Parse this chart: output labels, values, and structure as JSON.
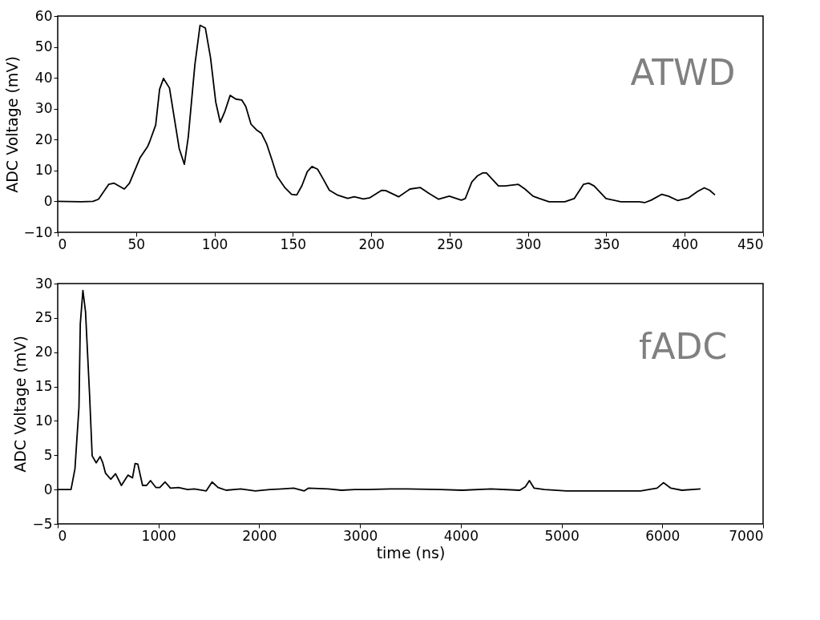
{
  "chart_data": [
    {
      "type": "line",
      "ylabel": "ADC Voltage (mV)",
      "annotations": [
        "ATWD"
      ],
      "xlim": [
        0,
        450
      ],
      "xticks": [
        0,
        50,
        100,
        150,
        200,
        250,
        300,
        350,
        400,
        450
      ],
      "ylim": [
        -10,
        60
      ],
      "yticks": [
        -10,
        0,
        10,
        20,
        30,
        40,
        50,
        60
      ],
      "grid": false,
      "tick_labels": true,
      "series": [
        {
          "color": "#000000",
          "x": [
            0,
            15,
            22.5,
            26,
            32.5,
            36,
            42.5,
            45.8,
            52.5,
            57.5,
            59,
            62.5,
            65,
            67.5,
            71.3,
            77.5,
            80.8,
            83.3,
            87.5,
            90.8,
            94.2,
            97.5,
            100.8,
            103.7,
            106.7,
            110,
            113.7,
            117.5,
            120,
            123.3,
            126.7,
            130,
            133.3,
            136.7,
            140,
            145,
            149.2,
            152.5,
            155.8,
            159.2,
            162.2,
            165.8,
            169.2,
            173.3,
            178.3,
            185,
            189.2,
            195,
            199.2,
            206.7,
            209.2,
            217.5,
            224.7,
            231.2,
            237.1,
            243,
            249.8,
            257.5,
            260,
            264.2,
            267.6,
            271,
            273.5,
            281.2,
            285.4,
            293.9,
            298.1,
            303.2,
            307.4,
            313.4,
            323.5,
            329.5,
            335.4,
            338.8,
            342.2,
            349.8,
            359.2,
            371,
            374.4,
            378.6,
            385.4,
            389.6,
            395.5,
            402.3,
            408.2,
            412.5,
            415.9,
            419.3
          ],
          "values": [
            0,
            -0.1,
            0,
            0.7,
            5.5,
            5.9,
            4.0,
            5.9,
            14.1,
            17.9,
            19.8,
            24.7,
            36.3,
            39.8,
            36.7,
            17.1,
            12.0,
            20.9,
            44.2,
            57.0,
            56.1,
            46.5,
            32.2,
            25.6,
            29.2,
            34.3,
            33.1,
            32.8,
            30.7,
            25.0,
            23.2,
            22.0,
            18.6,
            13.4,
            8.1,
            4.4,
            2.3,
            2.1,
            5.1,
            9.6,
            11.3,
            10.4,
            7.4,
            3.6,
            2.1,
            1.0,
            1.5,
            0.8,
            1.2,
            3.6,
            3.5,
            1.5,
            4.0,
            4.5,
            2.5,
            0.7,
            1.7,
            0.4,
            0.9,
            6.3,
            8.2,
            9.2,
            9.2,
            5.0,
            5.0,
            5.5,
            4.0,
            1.7,
            0.9,
            -0.1,
            -0.1,
            0.9,
            5.5,
            5.9,
            5.0,
            0.9,
            -0.1,
            -0.1,
            -0.4,
            0.4,
            2.3,
            1.7,
            0.3,
            1.1,
            3.2,
            4.4,
            3.6,
            2.1
          ]
        }
      ]
    },
    {
      "type": "line",
      "xlabel": "time (ns)",
      "ylabel": "ADC Voltage (mV)",
      "annotations": [
        "fADC"
      ],
      "xlim": [
        0,
        7000
      ],
      "xticks": [
        0,
        1000,
        2000,
        3000,
        4000,
        5000,
        6000,
        7000
      ],
      "ylim": [
        -5,
        30
      ],
      "yticks": [
        -5,
        0,
        5,
        10,
        15,
        20,
        25,
        30
      ],
      "grid": false,
      "series": [
        {
          "color": "#000000",
          "x": [
            0,
            132,
            171,
            211,
            224,
            250,
            276,
            316,
            342,
            382,
            421,
            447,
            474,
            526,
            574,
            632,
            697,
            742,
            768,
            795,
            842,
            882,
            921,
            974,
            1013,
            1066,
            1119,
            1198,
            1290,
            1355,
            1474,
            1532,
            1592,
            1671,
            1816,
            1961,
            2106,
            2224,
            2342,
            2447,
            2487,
            2685,
            2816,
            2948,
            3079,
            3300,
            3441,
            3800,
            4014,
            4300,
            4586,
            4640,
            4681,
            4728,
            4831,
            5049,
            5376,
            5785,
            5948,
            6011,
            6085,
            6194,
            6379
          ],
          "values": [
            0,
            0,
            3.0,
            12.0,
            24.1,
            29.0,
            25.9,
            13.9,
            4.9,
            3.9,
            4.8,
            3.9,
            2.4,
            1.5,
            2.3,
            0.6,
            2.1,
            1.7,
            3.8,
            3.7,
            0.6,
            0.6,
            1.3,
            0.3,
            0.3,
            1.1,
            0.2,
            0.3,
            0,
            0.1,
            -0.2,
            1.1,
            0.3,
            -0.1,
            0.1,
            -0.2,
            0,
            0.1,
            0.2,
            -0.2,
            0.2,
            0.1,
            -0.1,
            0,
            0,
            0.1,
            0.1,
            0,
            -0.1,
            0.1,
            -0.1,
            0.4,
            1.3,
            0.2,
            0,
            -0.2,
            -0.2,
            -0.2,
            0.2,
            1.0,
            0.2,
            -0.1,
            0.1
          ]
        }
      ]
    }
  ]
}
